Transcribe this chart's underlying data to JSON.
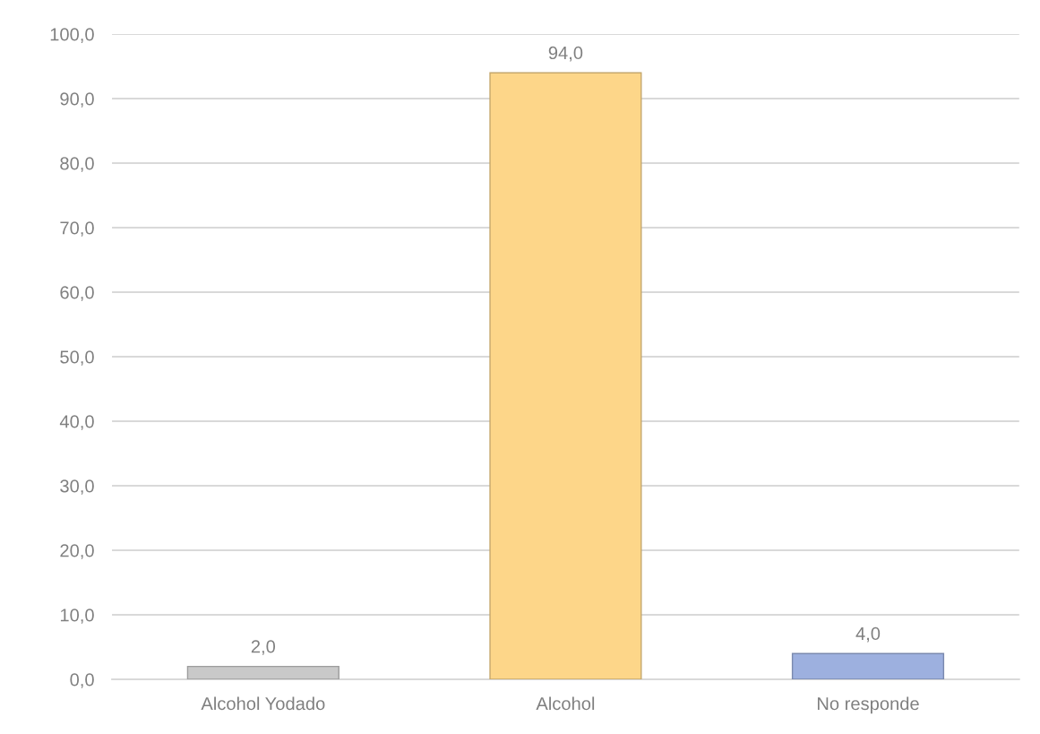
{
  "chart_data": {
    "type": "bar",
    "categories": [
      "Alcohol Yodado",
      "Alcohol",
      "No responde"
    ],
    "values": [
      2,
      94,
      4
    ],
    "colors": [
      "#c9c9c9",
      "#fdd689",
      "#9db0df"
    ],
    "value_labels": [
      "2,0",
      "94,0",
      "4,0"
    ],
    "ylim": [
      0,
      100
    ],
    "yticks": [
      {
        "value": 0,
        "label": "0,0"
      },
      {
        "value": 10,
        "label": "10,0"
      },
      {
        "value": 20,
        "label": "20,0"
      },
      {
        "value": 30,
        "label": "30,0"
      },
      {
        "value": 40,
        "label": "40,0"
      },
      {
        "value": 50,
        "label": "50,0"
      },
      {
        "value": 60,
        "label": "60,0"
      },
      {
        "value": 70,
        "label": "70,0"
      },
      {
        "value": 80,
        "label": "80,0"
      },
      {
        "value": 90,
        "label": "90,0"
      },
      {
        "value": 100,
        "label": "100,0"
      }
    ],
    "grid": "y"
  }
}
